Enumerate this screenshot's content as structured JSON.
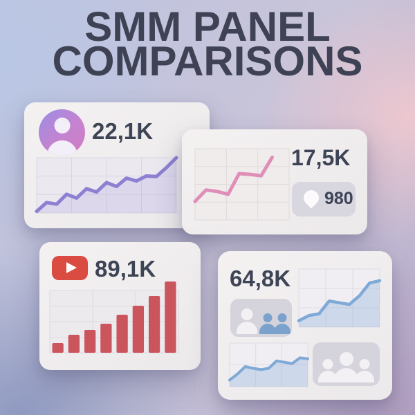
{
  "title": {
    "line1": "SMM PANEL",
    "line2": "COMPARISONS"
  },
  "cards": {
    "followers": {
      "value": "22,1K",
      "icon": "user-avatar-icon"
    },
    "engagement": {
      "value": "17,5K",
      "pin_count": "980",
      "icon": "location-pin-icon"
    },
    "youtube": {
      "value": "89,1K",
      "icon": "youtube-play-icon"
    },
    "audience": {
      "value": "64,8K",
      "icon": "people-group-icon"
    }
  },
  "colors": {
    "title_text": "#3e4254",
    "metric_text": "#3d4456",
    "card_bg": "#f2efef",
    "purple_line": "#8d80d2",
    "pink_line": "#de8eb7",
    "red_bar": "#cb555c",
    "youtube_red": "#da4b41",
    "blue_line": "#7fa9d6",
    "badge_bg": "#d5d3db",
    "avatar_gradient_start": "#9a8de4",
    "avatar_gradient_end": "#d07ec2"
  },
  "chart_data": [
    {
      "id": "followers-trend",
      "card": "followers",
      "type": "line",
      "values": [
        3,
        19,
        16,
        34,
        27,
        44,
        38,
        55,
        48,
        63,
        58,
        67,
        66,
        82,
        100
      ],
      "ymax": 100,
      "grid": {
        "cols": 4,
        "rows": 3
      },
      "xspan": 1,
      "color": "#8d80d2",
      "fill": "rgba(141,128,210,0.16)",
      "panel": "#ebe8f0",
      "grid_color": "#d9d6e2",
      "stroke": 5,
      "title": "",
      "xlabel": "",
      "ylabel": "",
      "axis_labels_shown": false
    },
    {
      "id": "engagement-trend",
      "card": "engagement",
      "type": "line",
      "values": [
        26,
        42,
        40,
        36,
        65,
        64,
        62,
        88
      ],
      "ymax": 100,
      "grid": {
        "cols": 3,
        "rows": 4
      },
      "xspan": 0.82,
      "color": "#de8eb7",
      "fill": false,
      "panel": "#f0ecec",
      "grid_color": "#e0dbdc",
      "stroke": 5,
      "title": "",
      "xlabel": "",
      "ylabel": "",
      "axis_labels_shown": false
    },
    {
      "id": "youtube-views-bars",
      "card": "youtube",
      "type": "bar",
      "values": [
        14,
        26,
        33,
        42,
        55,
        68,
        82,
        103
      ],
      "ymax": 105,
      "grid_max": 90,
      "grid": {
        "cols": 3,
        "rows": 4
      },
      "color": "#cb555c",
      "panel": "#edeaee",
      "grid_color": "#dcd9e0",
      "title": "",
      "xlabel": "",
      "ylabel": "",
      "axis_labels_shown": false
    },
    {
      "id": "audience-trend-main",
      "card": "audience",
      "type": "line",
      "values": [
        11,
        20,
        23,
        45,
        42,
        39,
        54,
        76,
        80
      ],
      "ymax": 100,
      "grid": {
        "cols": 3,
        "rows": 3
      },
      "xspan": 1,
      "color": "#7fa9d6",
      "fill": "rgba(127,169,214,0.3)",
      "panel": "#f0eef2",
      "grid_color": "#dddce4",
      "stroke": 4.5,
      "title": "",
      "xlabel": "",
      "ylabel": "",
      "axis_labels_shown": false
    },
    {
      "id": "audience-trend-secondary",
      "card": "audience",
      "type": "line",
      "values": [
        15,
        29,
        46,
        42,
        39,
        42,
        59,
        56,
        53,
        66,
        64
      ],
      "ymax": 100,
      "grid": {
        "cols": 3,
        "rows": 2
      },
      "xspan": 1,
      "color": "#7fa9d6",
      "fill": "rgba(127,169,214,0.3)",
      "panel": "#f0eef2",
      "grid_color": "#dddce4",
      "stroke": 4,
      "title": "",
      "xlabel": "",
      "ylabel": "",
      "axis_labels_shown": false
    }
  ]
}
